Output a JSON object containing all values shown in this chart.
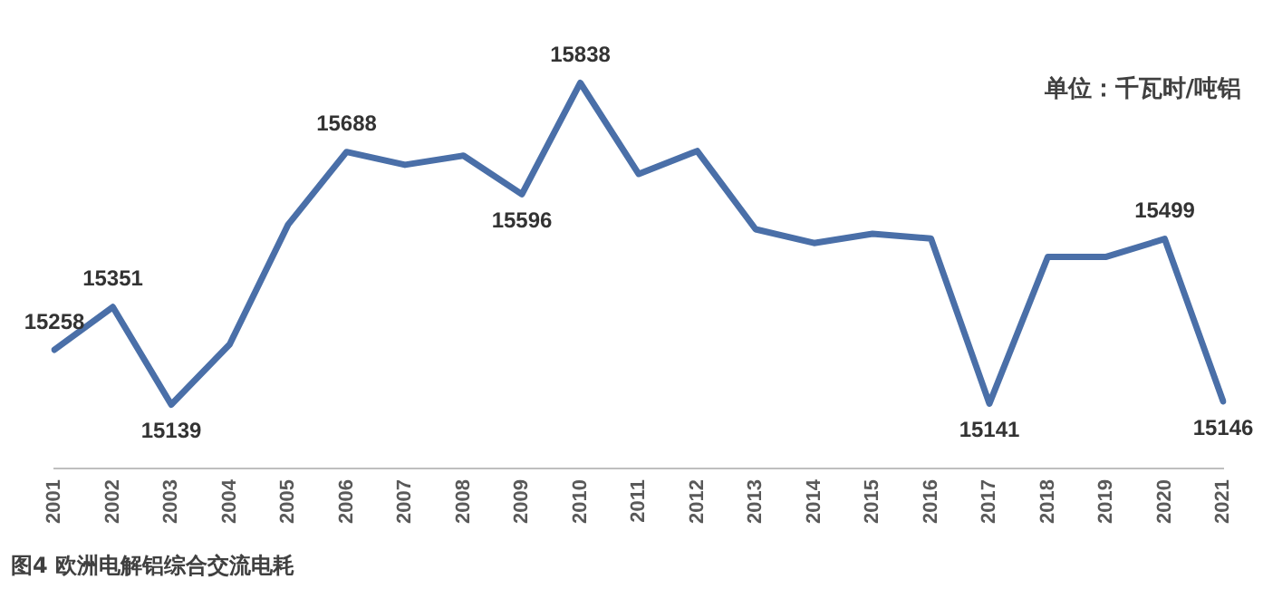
{
  "chart_data": {
    "type": "line",
    "title": "图4 欧洲电解铝综合交流电耗",
    "annotations": [
      "单位：千瓦时/吨铝"
    ],
    "categories": [
      "2001",
      "2002",
      "2003",
      "2004",
      "2005",
      "2006",
      "2007",
      "2008",
      "2009",
      "2010",
      "2011",
      "2012",
      "2013",
      "2014",
      "2015",
      "2016",
      "2017",
      "2018",
      "2019",
      "2020",
      "2021"
    ],
    "series": [
      {
        "color": "#4a6fa8",
        "values": [
          15258,
          15351,
          15139,
          15270,
          15530,
          15688,
          15660,
          15680,
          15596,
          15838,
          15640,
          15690,
          15520,
          15490,
          15510,
          15500,
          15141,
          15460,
          15460,
          15499,
          15146
        ],
        "value_labels": [
          "15258",
          "15351",
          "15139",
          null,
          null,
          "15688",
          null,
          null,
          "15596",
          "15838",
          null,
          null,
          null,
          null,
          null,
          null,
          "15141",
          null,
          null,
          "15499",
          "15146"
        ]
      }
    ],
    "grid": false,
    "legend": false,
    "marker": "none",
    "line_style": "solid"
  }
}
